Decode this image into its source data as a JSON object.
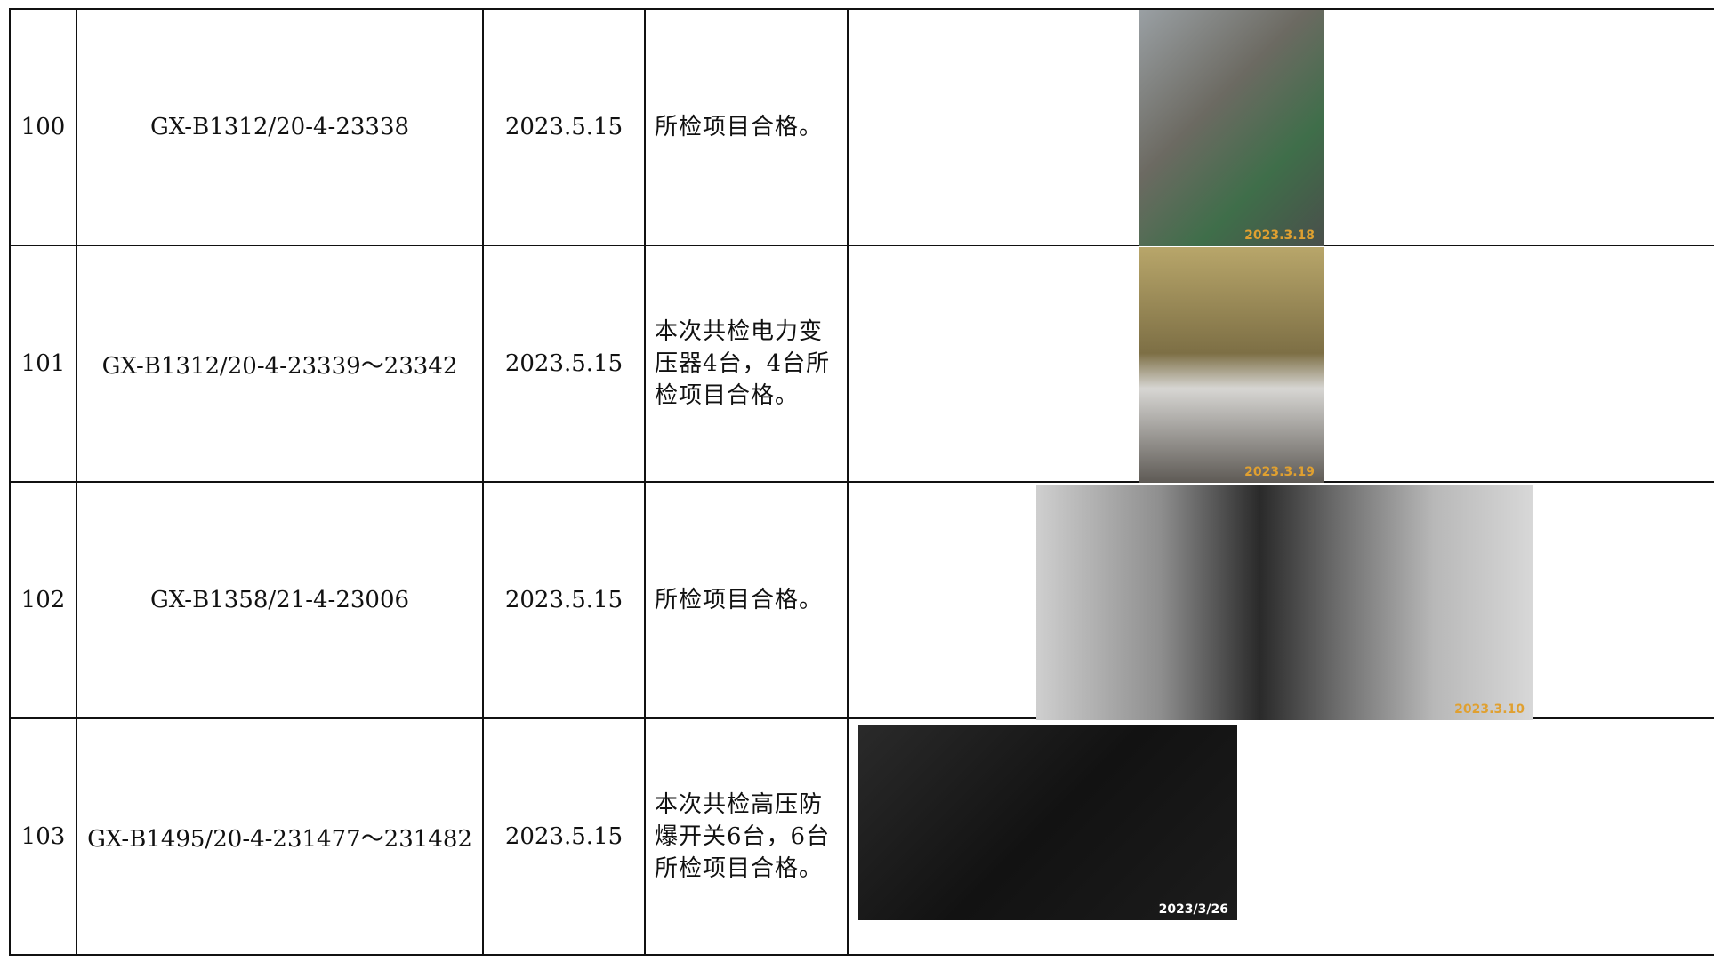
{
  "table": {
    "rows": [
      {
        "no": "100",
        "code": "GX-B1312/20-4-23338",
        "date": "2023.5.15",
        "result": "所检项目合格。",
        "photo_date": "2023.3.18"
      },
      {
        "no": "101",
        "code": "GX-B1312/20-4-23339～23342",
        "date": "2023.5.15",
        "result": "本次共检电力变压器4台，4台所检项目合格。",
        "photo_date": "2023.3.19"
      },
      {
        "no": "102",
        "code": "GX-B1358/21-4-23006",
        "date": "2023.5.15",
        "result": "所检项目合格。",
        "photo_date": "2023.3.10"
      },
      {
        "no": "103",
        "code": "GX-B1495/20-4-231477～231482",
        "date": "2023.5.15",
        "result": "本次共检高压防爆开关6台，6台所检项目合格。",
        "photo_date": "2023/3/26"
      }
    ]
  }
}
